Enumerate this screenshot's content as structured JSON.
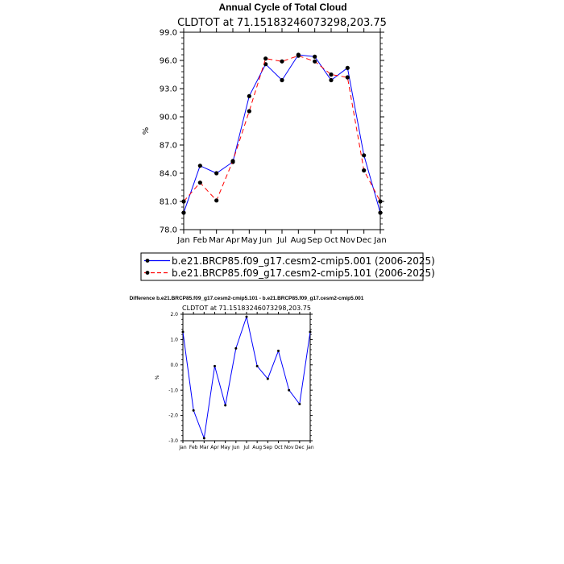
{
  "chart_data": [
    {
      "type": "line",
      "title": "Annual Cycle of Total Cloud",
      "subtitle": "CLDTOT at 71.15183246073298,203.75",
      "xlabel": "",
      "ylabel": "%",
      "categories": [
        "Jan",
        "Feb",
        "Mar",
        "Apr",
        "May",
        "Jun",
        "Jul",
        "Aug",
        "Sep",
        "Oct",
        "Nov",
        "Dec",
        "Jan"
      ],
      "ylim": [
        78.0,
        99.0
      ],
      "yticks": [
        "78.0",
        "81.0",
        "84.0",
        "87.0",
        "90.0",
        "93.0",
        "96.0",
        "99.0"
      ],
      "grid": false,
      "legend_position": "bottom",
      "series": [
        {
          "name": "b.e21.BRCP85.f09_g17.cesm2-cmip5.001 (2006-2025)",
          "color": "#0000ff",
          "dash": "solid",
          "values": [
            79.8,
            84.8,
            84.0,
            85.2,
            92.2,
            95.6,
            93.9,
            96.6,
            96.4,
            93.9,
            95.2,
            85.9,
            79.8
          ]
        },
        {
          "name": "b.e21.BRCP85.f09_g17.cesm2-cmip5.101 (2006-2025)",
          "color": "#ff0000",
          "dash": "dashed",
          "values": [
            81.0,
            83.0,
            81.1,
            85.3,
            90.6,
            96.2,
            95.9,
            96.5,
            95.9,
            94.5,
            94.2,
            84.3,
            81.0
          ]
        }
      ]
    },
    {
      "type": "line",
      "title": "Difference b.e21.BRCP85.f09_g17.cesm2-cmip5.101 - b.e21.BRCP85.f09_g17.cesm2-cmip5.001",
      "subtitle": "CLDTOT at 71.15183246073298,203.75",
      "xlabel": "",
      "ylabel": "%",
      "categories": [
        "Jan",
        "Feb",
        "Mar",
        "Apr",
        "May",
        "Jun",
        "Jul",
        "Aug",
        "Sep",
        "Oct",
        "Nov",
        "Dec",
        "Jan"
      ],
      "ylim": [
        -3.0,
        2.0
      ],
      "yticks": [
        "-3.0",
        "-2.0",
        "-1.0",
        "0.0",
        "1.0",
        "2.0"
      ],
      "grid": false,
      "series": [
        {
          "color": "#0000ff",
          "values": [
            1.3,
            -1.8,
            -2.9,
            -0.05,
            -1.6,
            0.65,
            1.9,
            -0.05,
            -0.55,
            0.55,
            -1.0,
            -1.55,
            1.3
          ]
        }
      ]
    }
  ]
}
